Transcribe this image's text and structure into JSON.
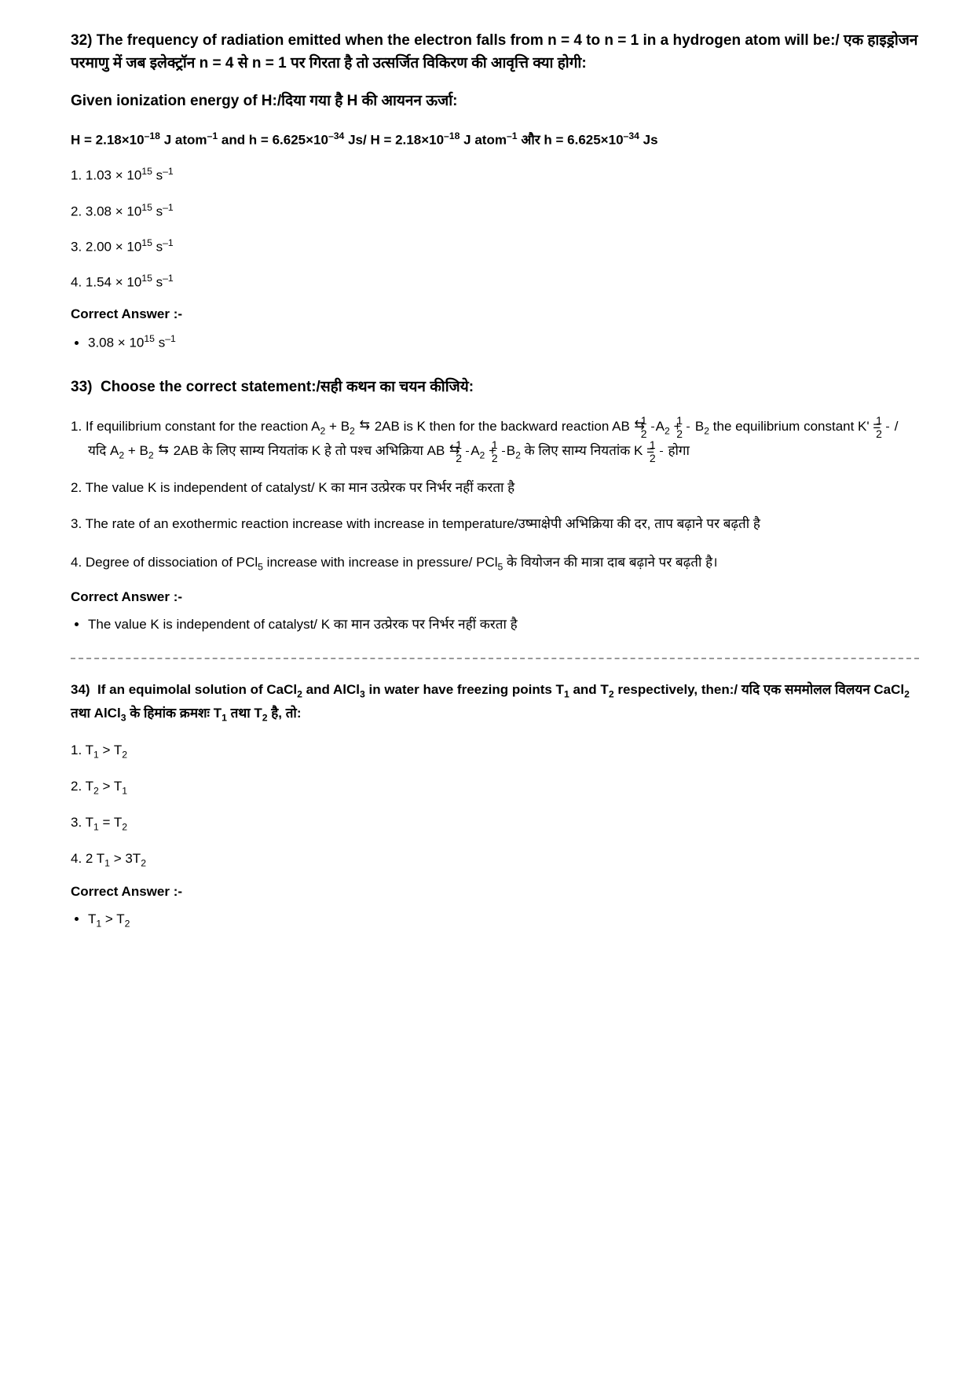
{
  "q32": {
    "number": "32)",
    "title_html": "The frequency of radiation emitted when the electron falls from n = 4 to n = 1 in a hydrogen atom will be:/ एक हाइड्रोजन परमाणु में जब इलेक्ट्रॉन n = 4 से n = 1 पर गिरता है तो उत्सर्जित विकिरण की आवृत्ति क्या होगी:",
    "sub_html": "Given ionization energy of H:/दिया गया है H की आयनन ऊर्जा:",
    "given_html": "H = 2.18×10<sup>–18</sup> J atom<sup>–1</sup> and h = 6.625×10<sup>–34</sup> Js/ H = 2.18×10<sup>–18</sup> J atom<sup>–1</sup> और h = 6.625×10<sup>–34</sup> Js",
    "options": [
      "1. 1.03 × 10<sup>15</sup> s<sup>–1</sup>",
      "2. 3.08 × 10<sup>15</sup> s<sup>–1</sup>",
      "3. 2.00 × 10<sup>15</sup> s<sup>–1</sup>",
      "4. 1.54 × 10<sup>15</sup> s<sup>–1</sup>"
    ],
    "correct_label": "Correct Answer :-",
    "correct_html": "3.08 × 10<sup>15</sup> s<sup>–1</sup>"
  },
  "q33": {
    "number": "33)",
    "title_html": "Choose the correct statement:/सही कथन का चयन कीजिये:",
    "options": [
      "1. If equilibrium constant for the reaction A<sub>2</sub> + B<sub>2</sub> <span class='arr'>⇆</span> 2AB is K then for the backward reaction AB <span class='arr'>⇆</span> <span class='frac'><span class='num'>1</span><span class='den'>2</span></span>A<sub>2</sub> + <span class='frac'><span class='num'>1</span><span class='den'>2</span></span> B<sub>2</sub> the equilibrium constant K' = <span class='frac'><span class='num'>1</span><span class='den'>2</span></span> / यदि A<sub>2</sub> + B<sub>2</sub> <span class='arr'>⇆</span> 2AB के लिए साम्य नियतांक K हे तो पश्च अभिक्रिया AB <span class='arr'>⇆</span> <span class='frac'><span class='num'>1</span><span class='den'>2</span></span>A<sub>2</sub> + <span class='frac'><span class='num'>1</span><span class='den'>2</span></span>B<sub>2</sub> के लिए साम्य नियतांक K = <span class='frac'><span class='num'>1</span><span class='den'>2</span></span> होगा",
      "2. The value K is independent of catalyst/ K का मान उत्प्रेरक पर निर्भर नहीं करता है",
      "3. The rate of an exothermic reaction increase with increase in temperature/उष्माक्षेपी अभिक्रिया की दर, ताप बढ़ाने पर बढ़ती है",
      "4. Degree of dissociation of PCl<sub>5</sub> increase with increase in pressure/ PCl<sub>5</sub> के वियोजन की मात्रा दाब बढ़ाने पर बढ़ती है।"
    ],
    "correct_label": "Correct Answer :-",
    "correct_html": "The value K is independent of catalyst/ K का मान उत्प्रेरक पर निर्भर नहीं करता है"
  },
  "q34": {
    "number": "34)",
    "title_html": "If an equimolal solution of CaCl<sub>2</sub> and AlCl<sub>3</sub> in water have freezing points T<sub>1</sub> and T<sub>2</sub> respectively, then:/ यदि एक सममोलल विलयन CaCl<sub>2</sub> तथा AlCl<sub>3</sub> के हिमांक क्रमशः T<sub>1</sub> तथा T<sub>2</sub> है, तो:",
    "options": [
      "1. T<sub>1</sub> > T<sub>2</sub>",
      "2. T<sub>2</sub> > T<sub>1</sub>",
      "3. T<sub>1</sub> = T<sub>2</sub>",
      "4. 2 T<sub>1</sub> > 3T<sub>2</sub>"
    ],
    "correct_label": "Correct Answer :-",
    "correct_html": "T<sub>1</sub> > T<sub>2</sub>"
  }
}
